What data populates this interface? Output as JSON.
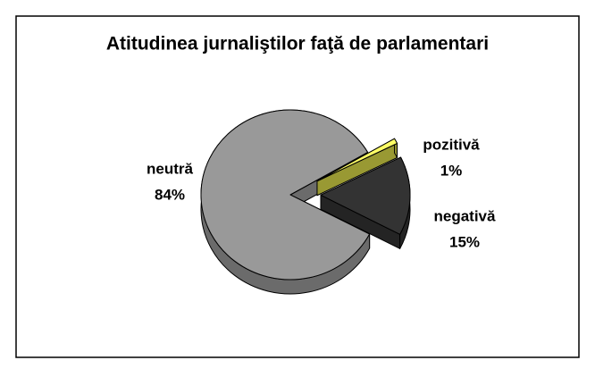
{
  "chart_data": {
    "type": "pie",
    "title": "Atitudinea jurnaliştilor faţă de parlamentari",
    "categories": [
      "pozitivă",
      "negativă",
      "neutră"
    ],
    "values": [
      1,
      15,
      84
    ],
    "value_labels": [
      "1%",
      "15%",
      "84%"
    ],
    "colors": [
      "#ffff66",
      "#333333",
      "#999999"
    ]
  }
}
